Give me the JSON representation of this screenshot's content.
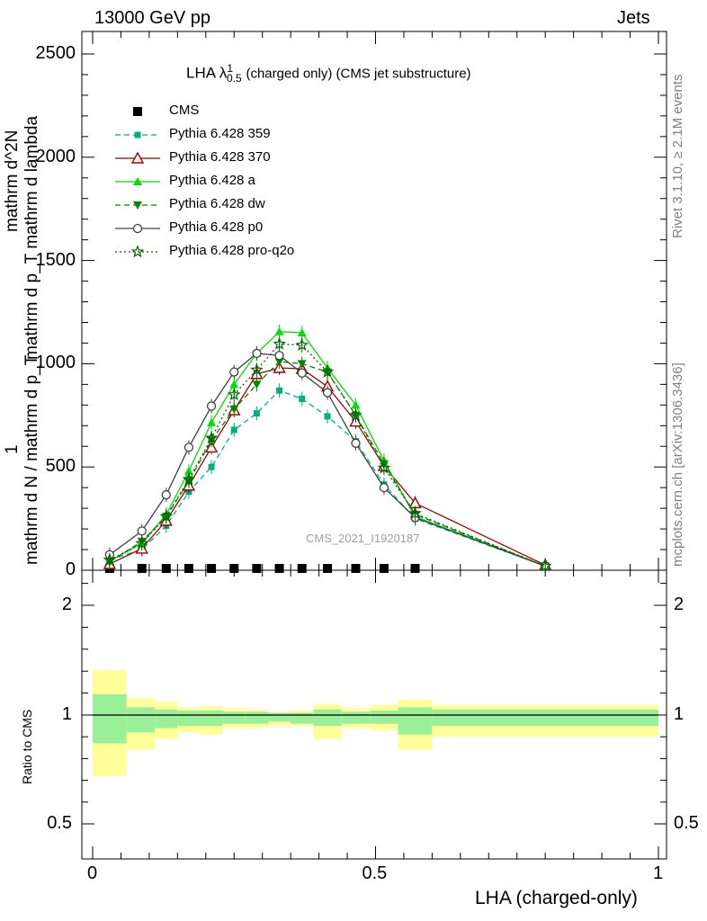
{
  "header": {
    "left": "13000 GeV pp",
    "right": "Jets"
  },
  "side_labels": {
    "rivet": "Rivet 3.1.10, ≥ 2.1M events",
    "mcplots": "mcplots.cern.ch [arXiv:1306.3436]"
  },
  "watermark": "CMS_2021_I1920187",
  "ylabel_main": {
    "numerator": "1",
    "denominator": "mathrm d N / mathrm d p_T",
    "right_num": "mathrm d^2N",
    "right_den": "mathrm d p_T mathrm d lambda"
  },
  "ylabel_ratio": "Ratio to CMS",
  "xlabel": "LHA (charged-only)",
  "title": {
    "main": "LHA λ",
    "sup": "1",
    "sub": "0.5",
    "rest": "(charged only) (CMS jet substructure)"
  },
  "colors": {
    "CMS": "#000000",
    "p359": "#00b080",
    "p370": "#a00000",
    "pa": "#00e000",
    "pdw": "#008800",
    "pp0": "#404040",
    "pq2o": "#006600",
    "band_outer": "#ffff99",
    "band_inner": "#99f099"
  },
  "chart_data": [
    {
      "type": "line",
      "title": "LHA λ^1_0.5 (charged only) (CMS jet substructure)",
      "xlabel": "",
      "ylabel": "1 / (mathrm d N / mathrm d p_T) · mathrm d^2N / (mathrm d p_T mathrm d lambda)",
      "xlim": [
        0,
        1
      ],
      "ylim": [
        0,
        2600
      ],
      "yticks": [
        0,
        500,
        1000,
        1500,
        2000,
        2500
      ],
      "xticks": [
        0,
        0.5,
        1
      ],
      "x": [
        0.03,
        0.087,
        0.13,
        0.17,
        0.21,
        0.25,
        0.29,
        0.33,
        0.37,
        0.415,
        0.465,
        0.515,
        0.57,
        0.8
      ],
      "series": [
        {
          "name": "CMS",
          "key": "CMS",
          "marker": "square",
          "dash": "none",
          "x": [
            0.03,
            0.087,
            0.13,
            0.17,
            0.21,
            0.25,
            0.29,
            0.33,
            0.37,
            0.415,
            0.465,
            0.515,
            0.57
          ],
          "values": [
            4,
            4,
            4,
            4,
            4,
            4,
            4,
            4,
            4,
            4,
            4,
            4,
            4
          ]
        },
        {
          "name": "Pythia 6.428 359",
          "key": "p359",
          "marker": "smallsquare",
          "dash": "6,4",
          "values": [
            50,
            100,
            215,
            380,
            500,
            680,
            760,
            870,
            830,
            745,
            625,
            415,
            250,
            20
          ]
        },
        {
          "name": "Pythia 6.428 370",
          "key": "p370",
          "marker": "triangle-open",
          "dash": "none",
          "values": [
            30,
            105,
            240,
            410,
            595,
            775,
            950,
            980,
            975,
            890,
            720,
            505,
            325,
            25
          ]
        },
        {
          "name": "Pythia 6.428 a",
          "key": "pa",
          "marker": "triangle",
          "dash": "none",
          "values": [
            45,
            130,
            270,
            480,
            715,
            900,
            1050,
            1155,
            1150,
            980,
            800,
            530,
            260,
            20
          ]
        },
        {
          "name": "Pythia 6.428 dw",
          "key": "pdw",
          "marker": "triangle-down",
          "dash": "6,4",
          "values": [
            40,
            140,
            260,
            430,
            630,
            780,
            900,
            1010,
            1000,
            960,
            750,
            515,
            270,
            20
          ]
        },
        {
          "name": "Pythia 6.428 p0",
          "key": "pp0",
          "marker": "circle-open",
          "dash": "none",
          "values": [
            75,
            190,
            365,
            595,
            795,
            960,
            1050,
            1040,
            955,
            860,
            615,
            400,
            255,
            20
          ]
        },
        {
          "name": "Pythia 6.428 pro-q2o",
          "key": "pq2o",
          "marker": "star",
          "dash": "2,3",
          "values": [
            50,
            130,
            260,
            440,
            640,
            850,
            970,
            1095,
            1090,
            960,
            750,
            495,
            275,
            20
          ]
        }
      ]
    },
    {
      "type": "area",
      "title": "",
      "ylabel": "Ratio to CMS",
      "xlabel": "LHA (charged-only)",
      "xlim": [
        0,
        1
      ],
      "ylim": [
        0.35,
        2.3
      ],
      "yticks": [
        0.5,
        1,
        2
      ],
      "xticks": [
        0,
        0.5,
        1
      ],
      "reference": 1,
      "bins": [
        0,
        0.06,
        0.11,
        0.15,
        0.19,
        0.23,
        0.27,
        0.31,
        0.35,
        0.39,
        0.44,
        0.49,
        0.54,
        0.6,
        1.0
      ],
      "outer_band": [
        [
          0.72,
          1.41
        ],
        [
          0.84,
          1.15
        ],
        [
          0.89,
          1.12
        ],
        [
          0.92,
          1.07
        ],
        [
          0.91,
          1.08
        ],
        [
          0.94,
          1.06
        ],
        [
          0.94,
          1.05
        ],
        [
          0.95,
          1.03
        ],
        [
          0.95,
          1.04
        ],
        [
          0.89,
          1.1
        ],
        [
          0.94,
          1.06
        ],
        [
          0.93,
          1.09
        ],
        [
          0.84,
          1.14
        ],
        [
          0.9,
          1.09
        ]
      ],
      "inner_band": [
        [
          0.87,
          1.19
        ],
        [
          0.92,
          1.07
        ],
        [
          0.94,
          1.05
        ],
        [
          0.95,
          1.04
        ],
        [
          0.95,
          1.04
        ],
        [
          0.96,
          1.03
        ],
        [
          0.96,
          1.03
        ],
        [
          0.97,
          1.02
        ],
        [
          0.96,
          1.02
        ],
        [
          0.95,
          1.05
        ],
        [
          0.96,
          1.03
        ],
        [
          0.96,
          1.04
        ],
        [
          0.91,
          1.07
        ],
        [
          0.95,
          1.05
        ]
      ]
    }
  ]
}
